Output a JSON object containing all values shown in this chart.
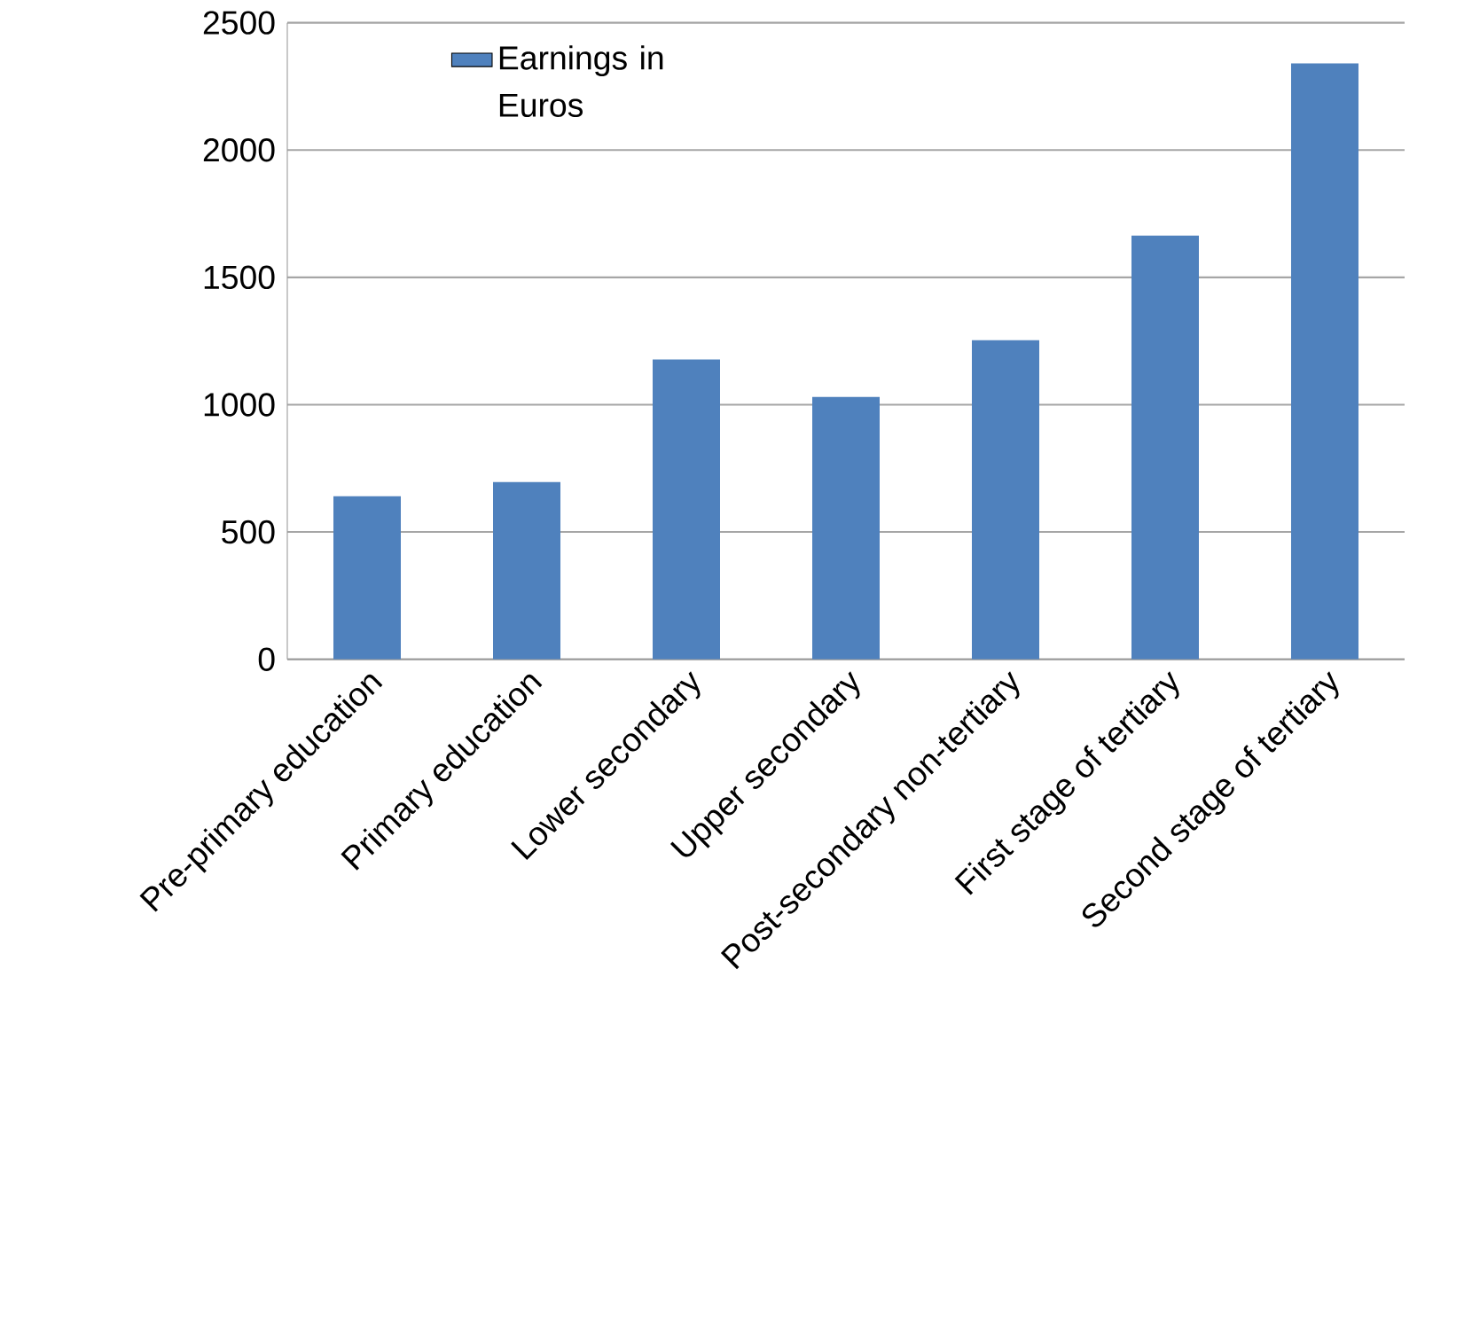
{
  "chart_data": {
    "type": "bar",
    "categories": [
      "Pre-primary education",
      "Primary education",
      "Lower secondary",
      "Upper secondary",
      "Post-secondary non-tertiary",
      "First stage of tertiary",
      "Second stage of tertiary"
    ],
    "series": [
      {
        "name": "Earnings in Euros",
        "color": "#4f81bd",
        "values": [
          640,
          696,
          1177,
          1030,
          1253,
          1664,
          2340
        ]
      }
    ],
    "ylim": [
      0,
      2500
    ],
    "yticks": [
      0,
      500,
      1000,
      1500,
      2000,
      2500
    ],
    "grid": "y",
    "legend": "top left"
  }
}
